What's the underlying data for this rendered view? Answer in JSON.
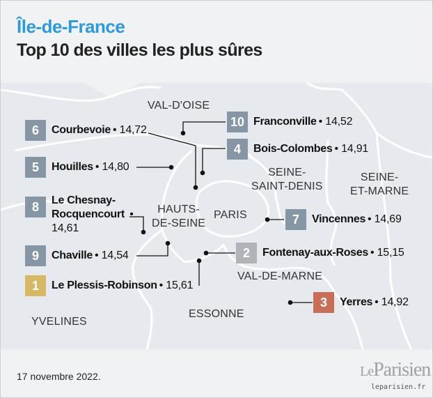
{
  "header": {
    "title": "Île-de-France",
    "subtitle": "Top 10 des villes les plus sûres"
  },
  "regions": {
    "val_doise": "VAL-D'OISE",
    "seine_saint_denis_1": "SEINE-",
    "seine_saint_denis_2": "SAINT-DENIS",
    "seine_et_marne_1": "SEINE-",
    "seine_et_marne_2": "ET-MARNE",
    "hauts_de_seine_1": "HAUTS-",
    "hauts_de_seine_2": "DE-SEINE",
    "paris": "PARIS",
    "val_de_marne": "VAL-DE-MARNE",
    "essonne": "ESSONNE",
    "yvelines": "YVELINES"
  },
  "cities": [
    {
      "rank": "10",
      "name": "Franconville",
      "score": "14,52"
    },
    {
      "rank": "6",
      "name": "Courbevoie",
      "score": "14,72"
    },
    {
      "rank": "4",
      "name": "Bois-Colombes",
      "score": "14,91"
    },
    {
      "rank": "5",
      "name": "Houilles",
      "score": "14,80"
    },
    {
      "rank": "8",
      "name_line1": "Le Chesnay-",
      "name_line2": "Rocquencourt",
      "score": "14,61"
    },
    {
      "rank": "7",
      "name": "Vincennes",
      "score": "14,69"
    },
    {
      "rank": "9",
      "name": "Chaville",
      "score": "14,54"
    },
    {
      "rank": "2",
      "name": "Fontenay-aux-Roses",
      "score": "15,15"
    },
    {
      "rank": "1",
      "name": "Le Plessis-Robinson",
      "score": "15,61"
    },
    {
      "rank": "3",
      "name": "Yerres",
      "score": "14,92"
    }
  ],
  "footer": {
    "date": "17 novembre 2022.",
    "logo_le": "Le",
    "logo_name": "Parisien",
    "url": "leparisien.fr"
  },
  "colors": {
    "title": "#2e9ad6",
    "rank_default": "#8696a4",
    "rank_first": "#d6b867",
    "rank_second": "#b0b4b8",
    "rank_third": "#c86e58"
  }
}
